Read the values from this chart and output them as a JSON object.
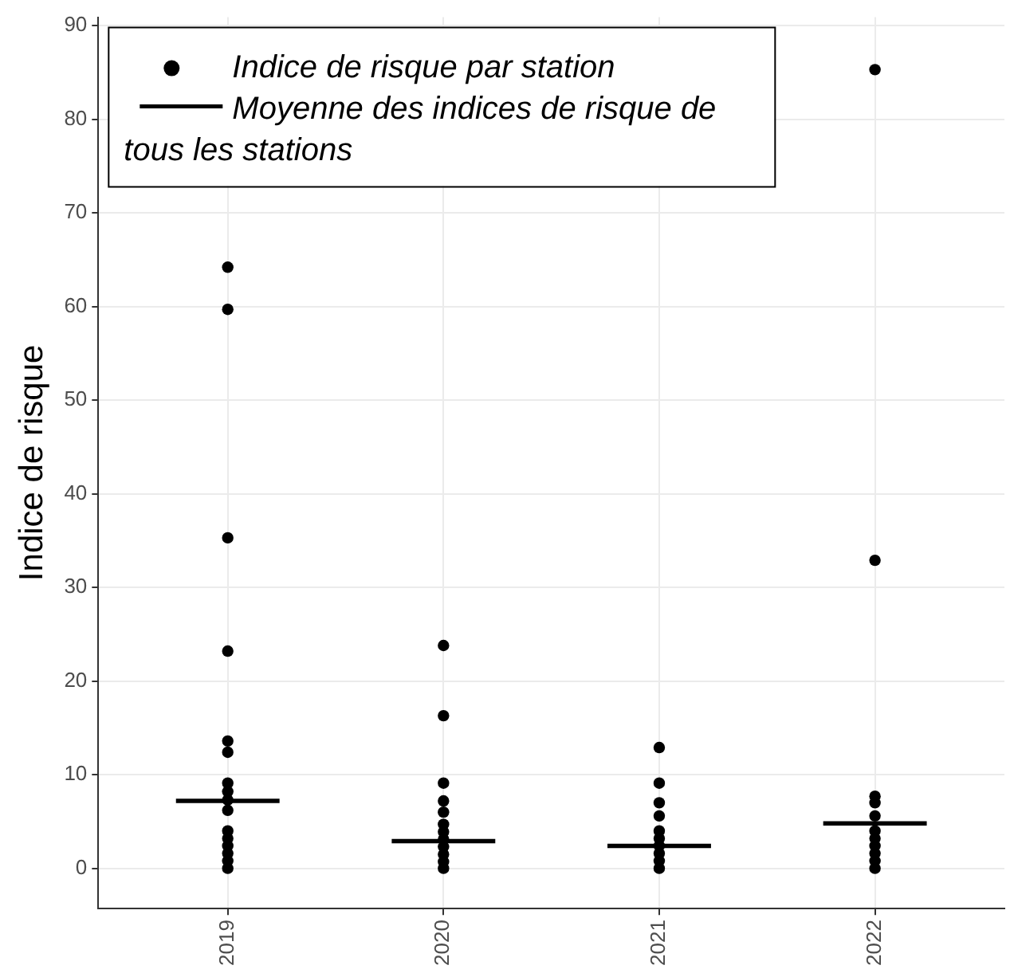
{
  "chart_data": {
    "type": "scatter",
    "ylabel": "Indice de risque",
    "xlim": [
      2018.4,
      2022.6
    ],
    "xticks": [
      2019,
      2020,
      2021,
      2022
    ],
    "ylim": [
      -4.3,
      90.9
    ],
    "yticks": [
      0,
      10,
      20,
      30,
      40,
      50,
      60,
      70,
      80,
      90
    ],
    "grid": true,
    "legend": "top left",
    "series": [
      {
        "name": "Indice de risque par station",
        "marker": "circle",
        "color": "#000000",
        "x": [
          2019,
          2019,
          2019,
          2019,
          2019,
          2019,
          2019,
          2019,
          2019,
          2019,
          2019,
          2019,
          2019,
          2019,
          2019,
          2019,
          2020,
          2020,
          2020,
          2020,
          2020,
          2020,
          2020,
          2020,
          2020,
          2020,
          2020,
          2020,
          2021,
          2021,
          2021,
          2021,
          2021,
          2021,
          2021,
          2021,
          2021,
          2021,
          2022,
          2022,
          2022,
          2022,
          2022,
          2022,
          2022,
          2022,
          2022,
          2022,
          2022
        ],
        "values": [
          64.2,
          59.7,
          35.3,
          23.2,
          13.6,
          12.4,
          9.1,
          8.2,
          7.3,
          6.2,
          4.0,
          3.2,
          2.4,
          1.6,
          0.8,
          0.0,
          23.8,
          16.3,
          9.1,
          7.2,
          6.0,
          4.7,
          3.9,
          3.1,
          2.3,
          1.5,
          0.7,
          0.0,
          12.9,
          9.1,
          7.0,
          5.6,
          4.0,
          3.2,
          2.4,
          1.6,
          0.8,
          0.0,
          85.3,
          32.9,
          7.7,
          7.0,
          5.6,
          4.0,
          3.2,
          2.4,
          1.6,
          0.8,
          0.0
        ]
      },
      {
        "name": "Moyenne des indices de risque de tous les stations",
        "type": "line",
        "marker": "none",
        "line_style": "solid",
        "color": "#000000",
        "x": [
          2018.76,
          2019.24,
          2019.5,
          2019.76,
          2020.24,
          2020.5,
          2020.76,
          2021.24,
          2021.5,
          2021.76,
          2022.24
        ],
        "values": [
          7.2,
          7.2,
          null,
          2.9,
          2.9,
          null,
          2.4,
          2.4,
          null,
          4.8,
          4.8
        ]
      }
    ]
  }
}
